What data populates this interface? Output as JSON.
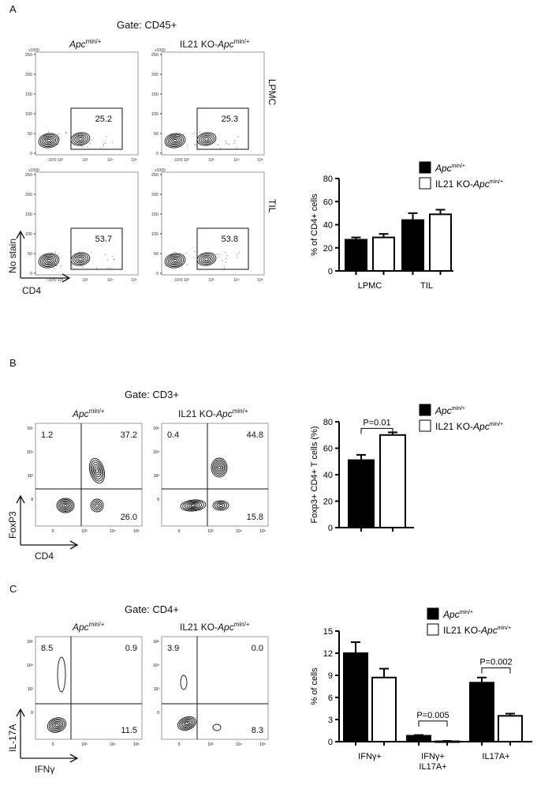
{
  "panels": {
    "A": {
      "letter": "A",
      "gate": "Gate: CD45+",
      "col_titles": [
        {
          "prefix": "",
          "italic": "Apc",
          "sup": "min/+"
        },
        {
          "prefix": "IL21 KO-",
          "italic": "Apc",
          "sup": "min/+"
        }
      ],
      "row_labels": [
        "LPMC",
        "TIL"
      ],
      "flow_y_axis": {
        "scale": "x1000",
        "ticks": [
          "250",
          "200",
          "150",
          "100",
          "50",
          "0"
        ]
      },
      "flow_x_axis": {
        "ticks": [
          "-10²0 10²",
          "10³",
          "10⁴",
          "10⁵"
        ]
      },
      "gate_values": [
        [
          "25.2",
          "25.3"
        ],
        [
          "53.7",
          "53.8"
        ]
      ],
      "axis_y": "No stain",
      "axis_x": "CD4"
    },
    "B": {
      "letter": "B",
      "gate": "Gate: CD3+",
      "col_titles": [
        {
          "prefix": "",
          "italic": "Apc",
          "sup": "min/+"
        },
        {
          "prefix": "IL21 KO-",
          "italic": "Apc",
          "sup": "min/+"
        }
      ],
      "quadrants": [
        {
          "ul": "1.2",
          "ur": "37.2",
          "lr": "26.0"
        },
        {
          "ul": "0.4",
          "ur": "44.8",
          "lr": "15.8"
        }
      ],
      "axis_y": "FoxP3",
      "axis_x": "CD4"
    },
    "C": {
      "letter": "C",
      "gate": "Gate: CD4+",
      "col_titles": [
        {
          "prefix": "",
          "italic": "Apc",
          "sup": "min/+"
        },
        {
          "prefix": "IL21 KO-",
          "italic": "Apc",
          "sup": "min/+"
        }
      ],
      "quadrants": [
        {
          "ul": "8.5",
          "ur": "0.9",
          "lr": "11.5"
        },
        {
          "ul": "3.9",
          "ur": "0.0",
          "lr": "8.3"
        }
      ],
      "axis_y": "IL-17A",
      "axis_x": "IFNγ"
    }
  },
  "quad_x_ticks": [
    "0",
    "10³",
    "10⁴",
    "10⁵"
  ],
  "quad_y_ticks": [
    "10⁵",
    "10⁴",
    "10³",
    "0"
  ],
  "legend": {
    "series1": {
      "italic": "Apc",
      "sup": "min/+",
      "color": "#000000"
    },
    "series2": {
      "prefix": "IL21 KO-",
      "italic": "Apc",
      "sup": "min/+",
      "color": "#ffffff"
    }
  },
  "chart_data": [
    {
      "type": "bar",
      "title": "",
      "ylabel": "% of CD4+ cells",
      "xlabel": "",
      "categories": [
        "LPMC",
        "TIL"
      ],
      "ylim": [
        0,
        80
      ],
      "yticks": [
        0,
        20,
        40,
        60,
        80
      ],
      "series": [
        {
          "name": "Apcmin/+",
          "values": [
            27,
            44
          ],
          "errors": [
            2,
            6
          ]
        },
        {
          "name": "IL21 KO-Apcmin/+",
          "values": [
            29,
            49
          ],
          "errors": [
            3,
            4
          ]
        }
      ],
      "legend_position": "top-right"
    },
    {
      "type": "bar",
      "title": "",
      "ylabel": "Foxp3+ CD4+ T cells (%)",
      "xlabel": "",
      "categories": [
        ""
      ],
      "ylim": [
        0,
        80
      ],
      "yticks": [
        0,
        20,
        40,
        60,
        80
      ],
      "series": [
        {
          "name": "Apcmin/+",
          "values": [
            51
          ],
          "errors": [
            4
          ]
        },
        {
          "name": "IL21 KO-Apcmin/+",
          "values": [
            70
          ],
          "errors": [
            2
          ]
        }
      ],
      "annotations": [
        "P=0.01"
      ],
      "legend_position": "top-right"
    },
    {
      "type": "bar",
      "title": "",
      "ylabel": "% of cells",
      "xlabel": "",
      "categories": [
        "IFNγ+",
        "IFNγ+ IL17A+",
        "IL17A+"
      ],
      "ylim": [
        0,
        15
      ],
      "yticks": [
        0,
        3,
        6,
        9,
        12,
        15
      ],
      "series": [
        {
          "name": "Apcmin/+",
          "values": [
            12.0,
            0.8,
            8.0
          ],
          "errors": [
            1.5,
            0.1,
            0.7
          ]
        },
        {
          "name": "IL21 KO-Apcmin/+",
          "values": [
            8.7,
            0.05,
            3.5
          ],
          "errors": [
            1.2,
            0.05,
            0.3
          ]
        }
      ],
      "annotations": [
        "P=0.005",
        "P=0.002"
      ],
      "legend_position": "top-right"
    }
  ]
}
